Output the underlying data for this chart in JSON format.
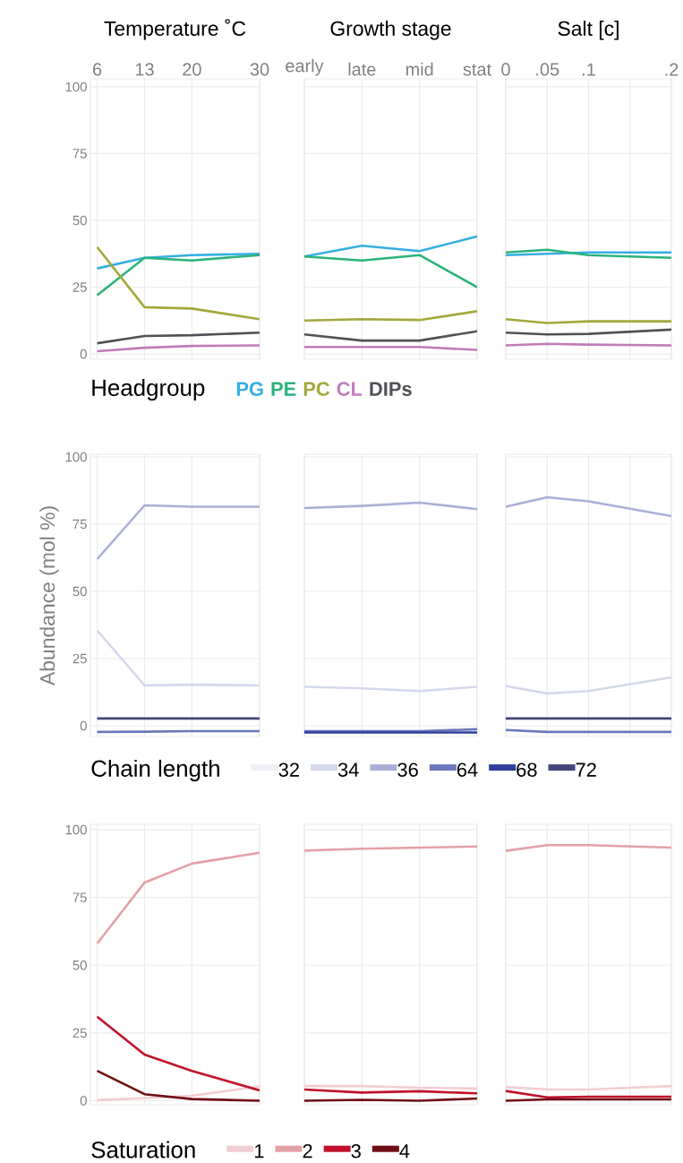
{
  "chart_data": [
    {
      "type": "line",
      "title": "Temperature ˚C",
      "x": [
        6,
        13,
        20,
        30
      ],
      "xlim": [
        5,
        30
      ],
      "xticks": [
        6,
        13,
        20,
        30
      ],
      "ylim": [
        -2,
        103
      ],
      "yticks": [
        0,
        25,
        50,
        75,
        100
      ],
      "grid": true,
      "legend": "bottom",
      "legend_title": "Headgroup",
      "series": [
        {
          "name": "PG",
          "color": "#35aee2",
          "values": [
            32,
            36,
            37,
            37.5
          ]
        },
        {
          "name": "PE",
          "color": "#2bb37b",
          "values": [
            22,
            36,
            35,
            37
          ]
        },
        {
          "name": "PC",
          "color": "#a3a83a",
          "values": [
            40,
            17.5,
            17,
            13
          ]
        },
        {
          "name": "CL",
          "color": "#c37bba",
          "values": [
            1,
            2.3,
            3,
            3.2
          ]
        },
        {
          "name": "DIPs",
          "color": "#505257",
          "values": [
            4,
            6.7,
            7,
            8
          ]
        }
      ]
    },
    {
      "type": "line",
      "title": "Growth stage",
      "categories": [
        "early",
        "late",
        "mid",
        "stat"
      ],
      "ylim": [
        -2,
        103
      ],
      "yticks": [
        0,
        25,
        50,
        75,
        100
      ],
      "grid": true,
      "tick_labels": "x",
      "series": [
        {
          "color": "#35aee2",
          "values": [
            36.5,
            40.5,
            38.5,
            44
          ]
        },
        {
          "color": "#2bb37b",
          "values": [
            36.5,
            35,
            37,
            25
          ]
        },
        {
          "color": "#a3a83a",
          "values": [
            12.5,
            13,
            12.7,
            16
          ]
        },
        {
          "color": "#c37bba",
          "values": [
            2.6,
            2.6,
            2.6,
            1.5
          ]
        },
        {
          "color": "#505257",
          "values": [
            7.3,
            5,
            5,
            8.5
          ]
        }
      ]
    },
    {
      "type": "line",
      "title": "Salt [c]",
      "x": [
        0,
        0.05,
        0.1,
        0.2
      ],
      "xlim": [
        0,
        0.2
      ],
      "xticks": [
        0,
        {
          "value": 0.05,
          "label": ".05"
        },
        {
          "value": 0.1,
          "label": ".1"
        },
        {
          "value": 0.15,
          "label": null
        },
        {
          "value": 0.2,
          "label": ".2"
        }
      ],
      "ylim": [
        -2,
        103
      ],
      "yticks": [
        0,
        25,
        50,
        75,
        100
      ],
      "grid": true,
      "tick_labels": "x",
      "series": [
        {
          "color": "#35aee2",
          "values": [
            37,
            37.5,
            38,
            38
          ]
        },
        {
          "color": "#2bb37b",
          "values": [
            38,
            39,
            37,
            36
          ]
        },
        {
          "color": "#a3a83a",
          "values": [
            13,
            11.6,
            12.2,
            12.2
          ]
        },
        {
          "color": "#c37bba",
          "values": [
            3.2,
            3.8,
            3.5,
            3.2
          ]
        },
        {
          "color": "#505257",
          "values": [
            8,
            7.3,
            7.5,
            9.1
          ]
        }
      ]
    },
    {
      "type": "line",
      "ylabel": "Abundance (mol %)",
      "x": [
        6,
        13,
        20,
        30
      ],
      "xlim": [
        5,
        30
      ],
      "xticks": [
        6,
        13,
        20,
        30
      ],
      "ylim": [
        -4,
        101
      ],
      "yticks": [
        0,
        25,
        50,
        75,
        100
      ],
      "grid": true,
      "tick_labels": "y",
      "legend": "bottom",
      "legend_title": "Chain length",
      "series": [
        {
          "name": "32",
          "color": "#eef0f6",
          "values": [
            null,
            null,
            null,
            null
          ]
        },
        {
          "name": "34",
          "color": "#d4d8eb",
          "values": [
            35.5,
            15,
            15.3,
            15
          ]
        },
        {
          "name": "36",
          "color": "#a9afd6",
          "values": [
            62,
            82,
            81.5,
            81.5
          ]
        },
        {
          "name": "64",
          "color": "#6a78ba",
          "values": [
            -2.3,
            -2.2,
            -2,
            -2
          ]
        },
        {
          "name": "68",
          "color": "#2e3e9a",
          "values": [
            null,
            null,
            null,
            null
          ]
        },
        {
          "name": "72",
          "color": "#44457a",
          "values": [
            2.7,
            2.7,
            2.7,
            2.7
          ]
        }
      ]
    },
    {
      "type": "line",
      "categories": [
        null,
        null,
        null,
        null
      ],
      "ylim": [
        -4,
        101
      ],
      "yticks": [
        0,
        25,
        50,
        75,
        100
      ],
      "grid": true,
      "tick_labels": false,
      "series": [
        {
          "color": "#d4d8eb",
          "values": [
            14.5,
            13.9,
            12.9,
            14.5
          ]
        },
        {
          "color": "#a9afd6",
          "values": [
            81,
            81.8,
            83,
            80.6
          ]
        },
        {
          "color": "#6a78ba",
          "values": [
            -2,
            -2,
            -2,
            -1.3
          ]
        },
        {
          "color": "#2e3e9a",
          "values": [
            -2.5,
            -2.5,
            -2.5,
            -2.5
          ]
        }
      ]
    },
    {
      "type": "line",
      "x": [
        0,
        0.05,
        0.1,
        0.2
      ],
      "xlim": [
        0,
        0.2
      ],
      "xticks": [
        {
          "value": 0,
          "label": null
        },
        {
          "value": 0.05,
          "label": null
        },
        {
          "value": 0.1,
          "label": null
        },
        {
          "value": 0.15,
          "label": null
        },
        {
          "value": 0.2,
          "label": null
        }
      ],
      "ylim": [
        -4,
        101
      ],
      "yticks": [
        0,
        25,
        50,
        75,
        100
      ],
      "grid": true,
      "tick_labels": false,
      "series": [
        {
          "color": "#d4d8eb",
          "values": [
            14.8,
            12,
            12.9,
            18
          ]
        },
        {
          "color": "#a9afd6",
          "values": [
            81.5,
            85,
            83.5,
            78
          ]
        },
        {
          "color": "#6a78ba",
          "values": [
            -1.6,
            -2.3,
            -2.3,
            -2.3
          ]
        },
        {
          "color": "#44457a",
          "values": [
            2.7,
            2.7,
            2.7,
            2.7
          ]
        }
      ]
    },
    {
      "type": "line",
      "x": [
        6,
        13,
        20,
        30
      ],
      "xlim": [
        5,
        30
      ],
      "xticks": [
        6,
        13,
        20,
        30
      ],
      "ylim": [
        -1.5,
        102
      ],
      "yticks": [
        0,
        25,
        50,
        75,
        100
      ],
      "grid": true,
      "tick_labels": "y",
      "legend": "bottom",
      "legend_title": "Saturation",
      "series": [
        {
          "name": "1",
          "color": "#f2cdd2",
          "values": [
            0.2,
            1,
            1.8,
            5.3
          ]
        },
        {
          "name": "2",
          "color": "#e3a0a7",
          "values": [
            58,
            80.5,
            87.5,
            91.5
          ]
        },
        {
          "name": "3",
          "color": "#c0122a",
          "values": [
            31,
            17,
            11,
            3.8
          ]
        },
        {
          "name": "4",
          "color": "#6f0d14",
          "values": [
            11,
            2.4,
            0.6,
            0
          ]
        }
      ]
    },
    {
      "type": "line",
      "categories": [
        null,
        null,
        null,
        null
      ],
      "ylim": [
        -1.5,
        102
      ],
      "yticks": [
        0,
        25,
        50,
        75,
        100
      ],
      "grid": true,
      "tick_labels": false,
      "series": [
        {
          "color": "#f2cdd2",
          "values": [
            5.4,
            5.4,
            4.8,
            4.5
          ]
        },
        {
          "color": "#e3a0a7",
          "values": [
            92.3,
            93,
            93.4,
            93.8
          ]
        },
        {
          "color": "#c0122a",
          "values": [
            4.1,
            3,
            3.5,
            2.7
          ]
        },
        {
          "color": "#6f0d14",
          "values": [
            0,
            0.3,
            0,
            0.8
          ]
        }
      ]
    },
    {
      "type": "line",
      "x": [
        0,
        0.05,
        0.1,
        0.2
      ],
      "xlim": [
        0,
        0.2
      ],
      "xticks": [
        {
          "value": 0,
          "label": null
        },
        {
          "value": 0.05,
          "label": null
        },
        {
          "value": 0.1,
          "label": null
        },
        {
          "value": 0.15,
          "label": null
        },
        {
          "value": 0.2,
          "label": null
        }
      ],
      "ylim": [
        -1.5,
        102
      ],
      "yticks": [
        0,
        25,
        50,
        75,
        100
      ],
      "grid": true,
      "tick_labels": false,
      "series": [
        {
          "color": "#f2cdd2",
          "values": [
            5,
            4.2,
            4.1,
            5.4
          ]
        },
        {
          "color": "#e3a0a7",
          "values": [
            92.2,
            94.3,
            94.3,
            93.4
          ]
        },
        {
          "color": "#c0122a",
          "values": [
            3.6,
            1.2,
            1.5,
            1.5
          ]
        },
        {
          "color": "#6f0d14",
          "values": [
            0,
            0.5,
            0.5,
            0.5
          ]
        }
      ]
    }
  ]
}
